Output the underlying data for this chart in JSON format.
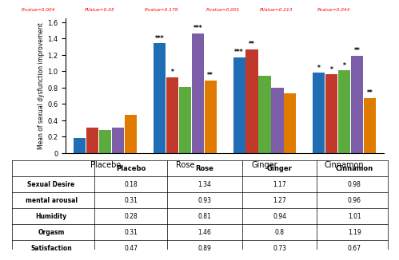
{
  "groups": [
    "Placebo",
    "Rose",
    "Ginger",
    "Cinnamon"
  ],
  "categories": [
    "Sexual Desire",
    "mental arousal",
    "Humidity",
    "Orgasm",
    "Satisfaction"
  ],
  "values": {
    "Placebo": [
      0.18,
      0.31,
      0.28,
      0.31,
      0.47
    ],
    "Rose": [
      1.34,
      0.93,
      0.81,
      1.46,
      0.89
    ],
    "Ginger": [
      1.17,
      1.27,
      0.94,
      0.8,
      0.73
    ],
    "Cinnamon": [
      0.98,
      0.96,
      1.01,
      1.19,
      0.67
    ]
  },
  "bar_colors": [
    "#1f6eb5",
    "#c0392b",
    "#5dab3c",
    "#7b5ea7",
    "#e07b00"
  ],
  "ylabel": "Mean of sexual dysfunction improvement",
  "ylim": [
    0,
    1.65
  ],
  "yticks": [
    0,
    0.2,
    0.4,
    0.6,
    0.8,
    1.0,
    1.2,
    1.4,
    1.6
  ],
  "pvalue_labels": [
    "P.value=0.004",
    "PValue=0.05",
    "P.value=0.179",
    "P.value=0.001",
    "PValue=0.213",
    "Pvalue=0.044"
  ],
  "table_data": [
    [
      "Sexual Desire",
      "0.18",
      "1.34",
      "1.17",
      "0.98"
    ],
    [
      "mental arousal",
      "0.31",
      "0.93",
      "1.27",
      "0.96"
    ],
    [
      "Humidity",
      "0.28",
      "0.81",
      "0.94",
      "1.01"
    ],
    [
      "Orgasm",
      "0.31",
      "1.46",
      "0.8",
      "1.19"
    ],
    [
      "Satisfaction",
      "0.47",
      "0.89",
      "0.73",
      "0.67"
    ]
  ]
}
